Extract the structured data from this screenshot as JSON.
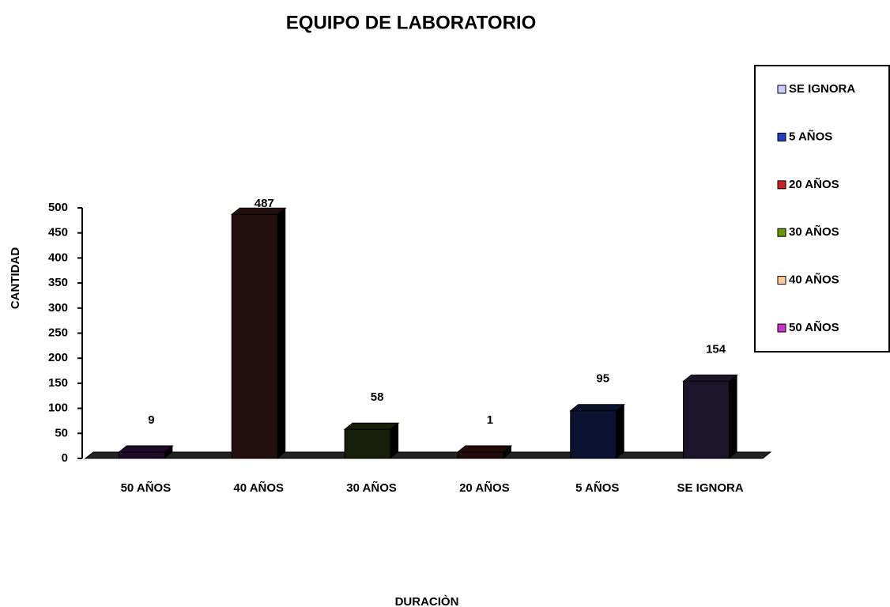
{
  "chart_data": {
    "type": "bar3d",
    "title": "EQUIPO DE LABORATORIO",
    "x_label": "DURACIÒN",
    "y_label": "CANTIDAD",
    "categories": [
      "50 AÑOS",
      "40 AÑOS",
      "30 AÑOS",
      "20 AÑOS",
      "5 AÑOS",
      "SE IGNORA"
    ],
    "values": [
      9,
      487,
      58,
      1,
      95,
      154
    ],
    "colors": [
      "#1e0c26",
      "#221010",
      "#161d08",
      "#200a0a",
      "#0b1230",
      "#1c1428"
    ],
    "ylim": [
      0,
      500
    ],
    "yticks": [
      0,
      50,
      100,
      150,
      200,
      250,
      300,
      350,
      400,
      450,
      500
    ],
    "legend": [
      {
        "name": "SE IGNORA",
        "color": "#ccccff"
      },
      {
        "name": "5 AÑOS",
        "color": "#1f3fbf"
      },
      {
        "name": "20 AÑOS",
        "color": "#cc2020"
      },
      {
        "name": "30 AÑOS",
        "color": "#669900"
      },
      {
        "name": "40 AÑOS",
        "color": "#ffcc99"
      },
      {
        "name": "50 AÑOS",
        "color": "#cc33cc"
      }
    ],
    "legend_position": "right"
  }
}
